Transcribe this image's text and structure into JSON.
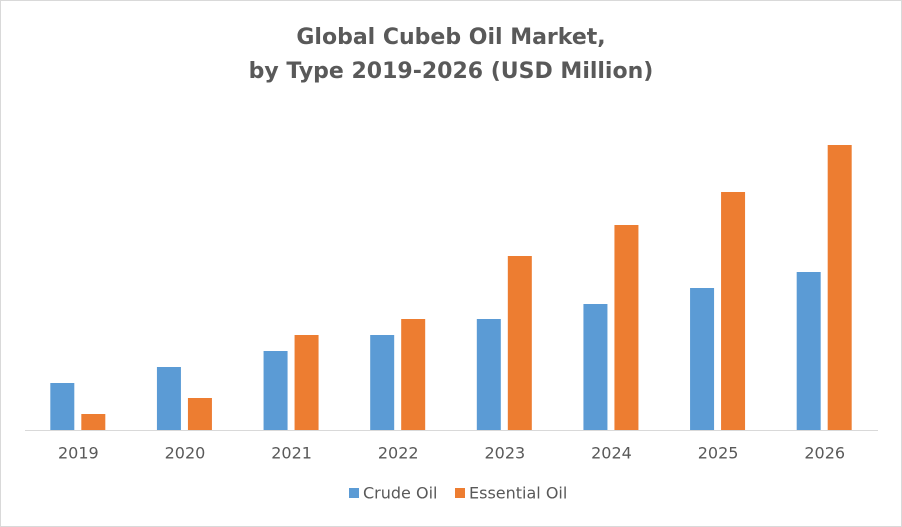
{
  "chart_data": {
    "type": "bar",
    "title": [
      "Global Cubeb Oil Market,",
      "by Type 2019-2026 (USD Million)"
    ],
    "categories": [
      "2019",
      "2020",
      "2021",
      "2022",
      "2023",
      "2024",
      "2025",
      "2026"
    ],
    "series": [
      {
        "name": "Crude Oil",
        "color": "#5b9bd5",
        "values": [
          47,
          63,
          79,
          95,
          111,
          126,
          142,
          158
        ]
      },
      {
        "name": "Essential Oil",
        "color": "#ed7d31",
        "values": [
          16,
          32,
          95,
          111,
          174,
          205,
          238,
          285
        ]
      }
    ],
    "legend": "bottom"
  }
}
